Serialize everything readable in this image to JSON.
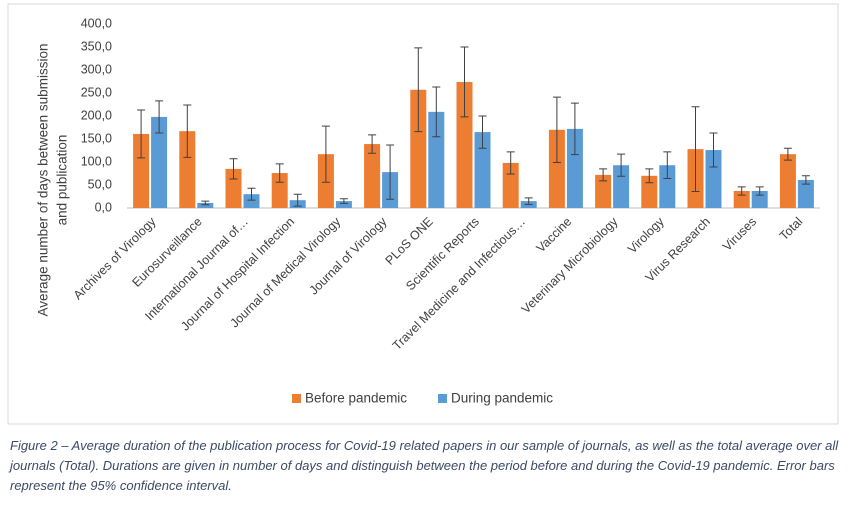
{
  "chart_data": {
    "type": "bar",
    "ylabel": [
      "Average number of days  between submission",
      "and publication"
    ],
    "categories": [
      "Archives of Virology",
      "Eurosurveillance",
      "International Journal of…",
      "Journal of Hospital Infection",
      "Journal of Medical Virology",
      "Journal of Virology",
      "PLoS ONE",
      "Scientific Reports",
      "Travel Medicine and Infectious…",
      "Vaccine",
      "Veterinary Microbiology",
      "Virology",
      "Virus Research",
      "Viruses",
      "Total"
    ],
    "series": [
      {
        "name": "Before pandemic",
        "color": "#ed7d31",
        "values": [
          161,
          167,
          85,
          76,
          117,
          139,
          257,
          274,
          98,
          170,
          72,
          70,
          128,
          37,
          117
        ],
        "errors": [
          52,
          57,
          22,
          20,
          61,
          20,
          91,
          76,
          24,
          71,
          13,
          15,
          92,
          9,
          13
        ]
      },
      {
        "name": "During pandemic",
        "color": "#5b9bd5",
        "values": [
          198,
          11,
          30,
          17,
          15,
          78,
          209,
          165,
          15,
          172,
          93,
          93,
          126,
          37,
          61
        ],
        "errors": [
          35,
          4,
          13,
          13,
          5,
          59,
          54,
          35,
          7,
          56,
          24,
          29,
          37,
          9,
          9
        ]
      }
    ],
    "ylim": [
      0,
      400
    ],
    "yticks": [
      {
        "value": 0,
        "label": "0,0"
      },
      {
        "value": 50,
        "label": "50,0"
      },
      {
        "value": 100,
        "label": "100,0"
      },
      {
        "value": 150,
        "label": "150,0"
      },
      {
        "value": 200,
        "label": "200,0"
      },
      {
        "value": 250,
        "label": "250,0"
      },
      {
        "value": 300,
        "label": "300,0"
      },
      {
        "value": 350,
        "label": "350,0"
      },
      {
        "value": 400,
        "label": "400,0"
      }
    ],
    "legend": "bottom",
    "caption": "Figure 2 – Average duration of the publication process for Covid-19 related papers in our sample of journals, as well as the total average over all journals (Total). Durations are given in number of days and distinguish between the period before and during the Covid-19 pandemic. Error bars represent the 95% confidence interval."
  }
}
